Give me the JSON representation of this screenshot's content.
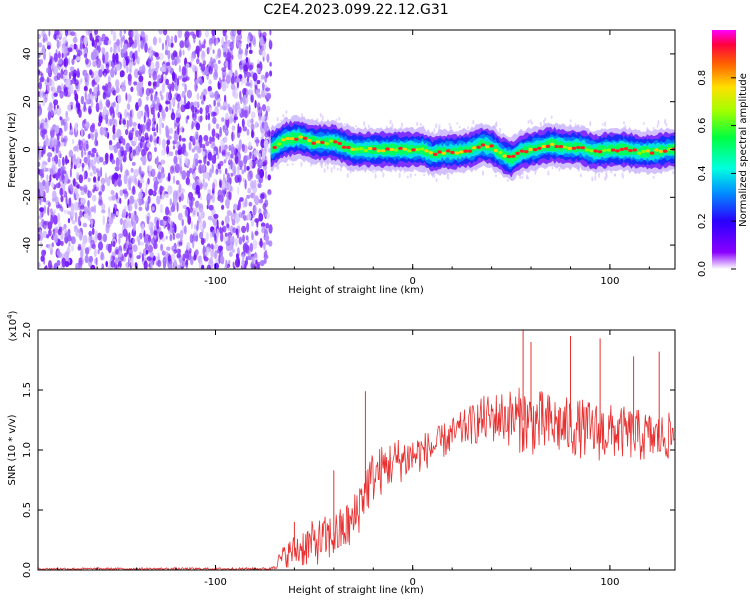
{
  "title": "C2E4.2023.099.22.12.G31",
  "chart_data": [
    {
      "type": "heatmap",
      "xlabel": "Height of straight line (km)",
      "ylabel": "Frequency (Hz)",
      "xlim": [
        -190,
        133
      ],
      "ylim": [
        -50,
        50
      ],
      "x_ticks": [
        -100,
        0,
        100
      ],
      "y_ticks": [
        -40,
        -20,
        0,
        20,
        40
      ],
      "noise_region_x": [
        -190,
        -72
      ],
      "frequency_trace": {
        "x": [
          -72,
          -65,
          -58,
          -50,
          -40,
          -30,
          -20,
          -10,
          -3,
          5,
          10,
          15,
          22,
          30,
          35,
          40,
          45,
          50,
          55,
          60,
          65,
          70,
          78,
          85,
          92,
          100,
          108,
          115,
          122,
          130
        ],
        "y": [
          0,
          4,
          5,
          3,
          3,
          0,
          0,
          0,
          0,
          0,
          -2,
          -1,
          -1,
          0,
          2,
          1,
          -2,
          -4,
          -1,
          0,
          1,
          2,
          1,
          1,
          -1,
          0,
          0,
          -1,
          -1,
          0
        ]
      },
      "colorbar": {
        "label": "Normalized spectral amplitude",
        "ticks": [
          0.0,
          0.2,
          0.4,
          0.6,
          0.8
        ],
        "tick_labels": [
          "0.0",
          "0.2",
          "0.4",
          "0.6",
          "0.8"
        ],
        "range": [
          0,
          1
        ]
      }
    },
    {
      "type": "line",
      "xlabel": "Height of straight line (km)",
      "ylabel": "SNR (10 * v/v)",
      "scale_label": "(x10",
      "scale_exp": "4",
      "scale_close": ")",
      "xlim": [
        -190,
        133
      ],
      "ylim": [
        0,
        2.0
      ],
      "x_ticks": [
        -100,
        0,
        100
      ],
      "y_ticks": [
        0.0,
        0.5,
        1.0,
        1.5,
        2.0
      ],
      "y_tick_labels": [
        "0.0",
        "0.5",
        "1.0",
        "1.5",
        "2.0"
      ],
      "color": "#e83030",
      "envelope": {
        "x": [
          -190,
          -72,
          -65,
          -55,
          -45,
          -38,
          -30,
          -25,
          -20,
          -10,
          0,
          10,
          20,
          28,
          35,
          45,
          55,
          65,
          75,
          85,
          95,
          105,
          115,
          125,
          133
        ],
        "mean": [
          0.01,
          0.01,
          0.12,
          0.2,
          0.25,
          0.3,
          0.4,
          0.65,
          0.78,
          0.9,
          0.95,
          1.02,
          1.12,
          1.2,
          1.25,
          1.28,
          1.25,
          1.22,
          1.2,
          1.18,
          1.15,
          1.15,
          1.12,
          1.1,
          1.12
        ],
        "amp": [
          0.008,
          0.01,
          0.1,
          0.18,
          0.2,
          0.2,
          0.22,
          0.25,
          0.22,
          0.2,
          0.18,
          0.15,
          0.15,
          0.16,
          0.2,
          0.22,
          0.28,
          0.28,
          0.25,
          0.25,
          0.25,
          0.22,
          0.22,
          0.2,
          0.2
        ]
      },
      "peaks": [
        {
          "x": -60,
          "y": 0.4
        },
        {
          "x": -40,
          "y": 0.83
        },
        {
          "x": -24,
          "y": 1.49
        },
        {
          "x": 56,
          "y": 2.0
        },
        {
          "x": 60,
          "y": 1.9
        },
        {
          "x": 80,
          "y": 1.95
        },
        {
          "x": 95,
          "y": 1.93
        },
        {
          "x": 112,
          "y": 1.78
        },
        {
          "x": 125,
          "y": 1.82
        }
      ]
    }
  ]
}
